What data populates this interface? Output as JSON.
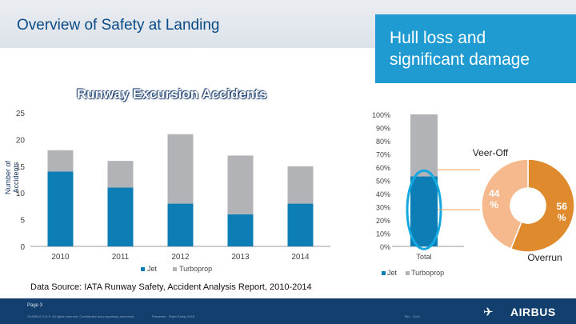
{
  "header": {
    "title": "Overview of Safety at Landing"
  },
  "banner": {
    "text": "Hull loss and\nsignificant damage"
  },
  "subtitle": "Runway Excursion Accidents",
  "source": "Data Source: IATA Runway Safety, Accident Analysis Report, 2010-2014",
  "footer": {
    "page": "Page 3",
    "confidential": "©AIRBUS S.A.S. All rights reserved. Confidential and proprietary document.",
    "presenter": "Presenter - Flight Safety 2015",
    "date": "Title - 2015",
    "logo": "AIRBUS",
    "logo_icon": "✈"
  },
  "colors": {
    "jet": "#0d7eb5",
    "turboprop": "#b2b3b7",
    "veer": "#f5b98d",
    "overrun": "#e08a2e",
    "navy": "#123f6e"
  },
  "chart_data": [
    {
      "type": "bar",
      "stacked": true,
      "title": "Runway Excursion Accidents",
      "ylabel": "Number of Accidents",
      "xlabel": "",
      "ylim": [
        0,
        25
      ],
      "yticks": [
        0,
        5,
        10,
        15,
        20,
        25
      ],
      "categories": [
        "2010",
        "2011",
        "2012",
        "2013",
        "2014"
      ],
      "series": [
        {
          "name": "Jet",
          "values": [
            14,
            11,
            8,
            6,
            8
          ]
        },
        {
          "name": "Turboprop",
          "values": [
            4,
            5,
            13,
            11,
            7
          ]
        }
      ],
      "legend": "bottom"
    },
    {
      "type": "bar",
      "stacked": true,
      "percent": true,
      "ylim": [
        0,
        100
      ],
      "yticks": [
        "0%",
        "10%",
        "20%",
        "30%",
        "40%",
        "50%",
        "60%",
        "70%",
        "80%",
        "90%",
        "100%"
      ],
      "categories": [
        "Total"
      ],
      "series": [
        {
          "name": "Jet",
          "values": [
            53
          ]
        },
        {
          "name": "Turboprop",
          "values": [
            47
          ]
        }
      ],
      "legend": "bottom"
    },
    {
      "type": "pie",
      "labels": [
        "Overrun",
        "Veer-Off"
      ],
      "values": [
        56,
        44
      ],
      "data_labels": [
        "56\n%",
        "44\n%"
      ],
      "donut": true
    }
  ]
}
